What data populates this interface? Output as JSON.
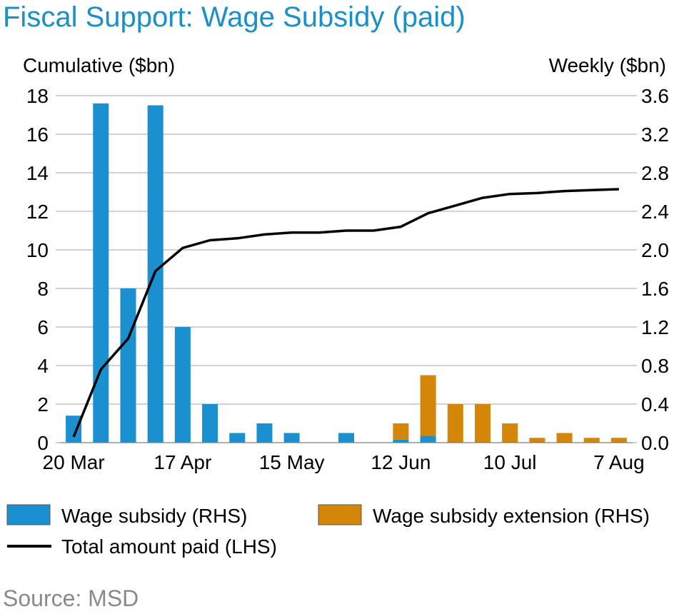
{
  "title": "Fiscal Support: Wage Subsidy (paid)",
  "source": "Source: MSD",
  "colors": {
    "wage_subsidy": "#1a90d0",
    "extension": "#d48608",
    "line": "#000000",
    "title": "#1b8fc9",
    "grid": "#a6a6a6"
  },
  "chart_data": {
    "type": "bar",
    "left_axis": {
      "label": "Cumulative ($bn)",
      "min": 0,
      "max": 18,
      "step": 2,
      "ticks": [
        "0",
        "2",
        "4",
        "6",
        "8",
        "10",
        "12",
        "14",
        "16",
        "18"
      ]
    },
    "right_axis": {
      "label": "Weekly ($bn)",
      "min": 0,
      "max": 3.6,
      "step": 0.4,
      "ticks": [
        "0.0",
        "0.4",
        "0.8",
        "1.2",
        "1.6",
        "2.0",
        "2.4",
        "2.8",
        "3.2",
        "3.6"
      ]
    },
    "x_ticks": [
      {
        "label": "20 Mar",
        "index": 0
      },
      {
        "label": "17 Apr",
        "index": 4
      },
      {
        "label": "15 May",
        "index": 8
      },
      {
        "label": "12 Jun",
        "index": 12
      },
      {
        "label": "10 Jul",
        "index": 16
      },
      {
        "label": "7 Aug",
        "index": 20
      }
    ],
    "weeks": 21,
    "grid": true,
    "series": [
      {
        "name": "Wage subsidy (RHS)",
        "kind": "bar",
        "axis": "right",
        "values": [
          0.28,
          3.52,
          1.6,
          3.5,
          1.2,
          0.4,
          0.1,
          0.2,
          0.1,
          0,
          0.1,
          0,
          0.03,
          0.07,
          0,
          0,
          0,
          0,
          0,
          0,
          0
        ]
      },
      {
        "name": "Wage subsidy extension (RHS)",
        "kind": "bar",
        "axis": "right",
        "values": [
          0,
          0,
          0,
          0,
          0,
          0,
          0,
          0,
          0,
          0,
          0,
          0,
          0.17,
          0.63,
          0.4,
          0.4,
          0.2,
          0.05,
          0.1,
          0.05,
          0.05
        ]
      },
      {
        "name": "Total amount paid (LHS)",
        "kind": "line",
        "axis": "left",
        "values": [
          0.3,
          3.8,
          5.4,
          8.9,
          10.1,
          10.5,
          10.6,
          10.8,
          10.9,
          10.9,
          11.0,
          11.0,
          11.2,
          11.9,
          12.3,
          12.7,
          12.9,
          12.95,
          13.05,
          13.1,
          13.15
        ]
      }
    ]
  }
}
